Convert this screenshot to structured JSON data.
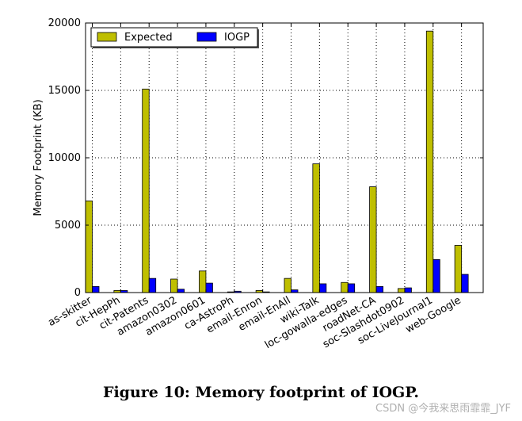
{
  "chart_data": {
    "type": "bar",
    "title": "",
    "xlabel": "",
    "ylabel": "Memory Footprint (KB)",
    "ylim": [
      0,
      20000
    ],
    "yticks": [
      0,
      5000,
      10000,
      15000,
      20000
    ],
    "grid": true,
    "legend_position": "top-left",
    "categories": [
      "as-skitter",
      "cit-HepPh",
      "cit-Patents",
      "amazon0302",
      "amazon0601",
      "ca-AstroPh",
      "email-Enron",
      "email-EnAll",
      "wiki-Talk",
      "loc-gowalla-edges",
      "roadNet-CA",
      "soc-Slashdot0902",
      "soc-LiveJournal1",
      "web-Google"
    ],
    "series": [
      {
        "name": "Expected",
        "color": "#bfbf00",
        "values": [
          6800,
          150,
          15100,
          1000,
          1600,
          50,
          150,
          1050,
          9550,
          750,
          7850,
          300,
          19400,
          3500
        ]
      },
      {
        "name": "IOGP",
        "color": "#0000ff",
        "values": [
          450,
          150,
          1050,
          250,
          700,
          100,
          50,
          200,
          650,
          650,
          450,
          350,
          2450,
          1350
        ]
      }
    ]
  },
  "caption": "Figure 10: Memory footprint of IOGP.",
  "watermark": "CSDN @今我来思雨霏霏_JYF",
  "colors": {
    "expected": "#bfbf00",
    "iogp": "#0000ff",
    "axis": "#000000"
  }
}
